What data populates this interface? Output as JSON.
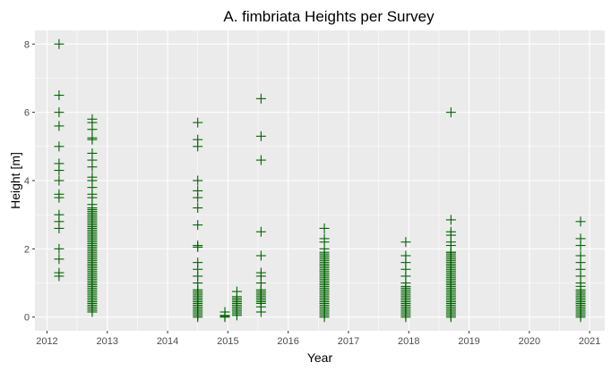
{
  "chart_data": {
    "type": "scatter",
    "title": "A. fimbriata Heights per Survey",
    "xlabel": "Year",
    "ylabel": "Height [m]",
    "x_ticks": [
      "2012",
      "2013",
      "2014",
      "2015",
      "2016",
      "2017",
      "2018",
      "2019",
      "2020",
      "2021"
    ],
    "y_ticks": [
      "0",
      "2",
      "4",
      "6",
      "8"
    ],
    "xlim": [
      2011.8,
      2021.25
    ],
    "ylim": [
      -0.4,
      8.4
    ],
    "marker": "plus",
    "series_color": "#006400",
    "panel_background": "#ebebeb",
    "grid": true,
    "surveys": [
      {
        "date": "2012.2",
        "heights": [
          8.0,
          6.5,
          6.0,
          5.6,
          5.0,
          4.5,
          4.3,
          4.0,
          3.6,
          3.5,
          3.0,
          2.8,
          2.6,
          2.0,
          1.7,
          1.3,
          1.2
        ],
        "range": null
      },
      {
        "date": "2012.75",
        "heights": [
          5.8,
          5.7,
          5.5,
          5.25,
          5.2,
          4.8,
          4.6,
          4.4,
          4.1,
          4.0,
          3.8,
          3.6,
          3.5,
          3.3
        ],
        "range": [
          0.15,
          3.2
        ]
      },
      {
        "date": "2014.5",
        "heights": [
          5.7,
          5.2,
          5.0,
          4.0,
          3.7,
          3.5,
          3.2,
          2.7,
          2.1,
          2.05,
          1.6,
          1.4,
          1.2,
          1.0
        ],
        "range": [
          0.0,
          0.8
        ]
      },
      {
        "date": "2014.95",
        "heights": [
          0.15
        ],
        "range": [
          0.0,
          0.05
        ]
      },
      {
        "date": "2015.15",
        "heights": [
          0.75
        ],
        "range": [
          0.05,
          0.6
        ]
      },
      {
        "date": "2015.55",
        "heights": [
          6.4,
          5.3,
          4.6,
          2.5,
          1.8,
          1.3,
          1.2,
          1.0,
          0.3,
          0.15
        ],
        "range": [
          0.4,
          0.8
        ]
      },
      {
        "date": "2016.6",
        "heights": [
          2.6,
          2.3,
          2.2,
          2.0
        ],
        "range": [
          0.0,
          1.9
        ]
      },
      {
        "date": "2017.95",
        "heights": [
          2.2,
          1.8,
          1.6,
          1.4,
          1.2,
          1.0
        ],
        "range": [
          0.0,
          0.9
        ]
      },
      {
        "date": "2018.7",
        "heights": [
          6.0,
          2.85,
          2.5,
          2.4,
          2.2,
          2.1,
          1.9,
          0.0
        ],
        "range": [
          0.05,
          1.9
        ]
      },
      {
        "date": "2020.85",
        "heights": [
          2.8,
          2.3,
          2.1,
          1.8,
          1.6,
          1.4,
          1.2,
          1.0,
          0.9
        ],
        "range": [
          0.0,
          0.8
        ]
      }
    ]
  }
}
